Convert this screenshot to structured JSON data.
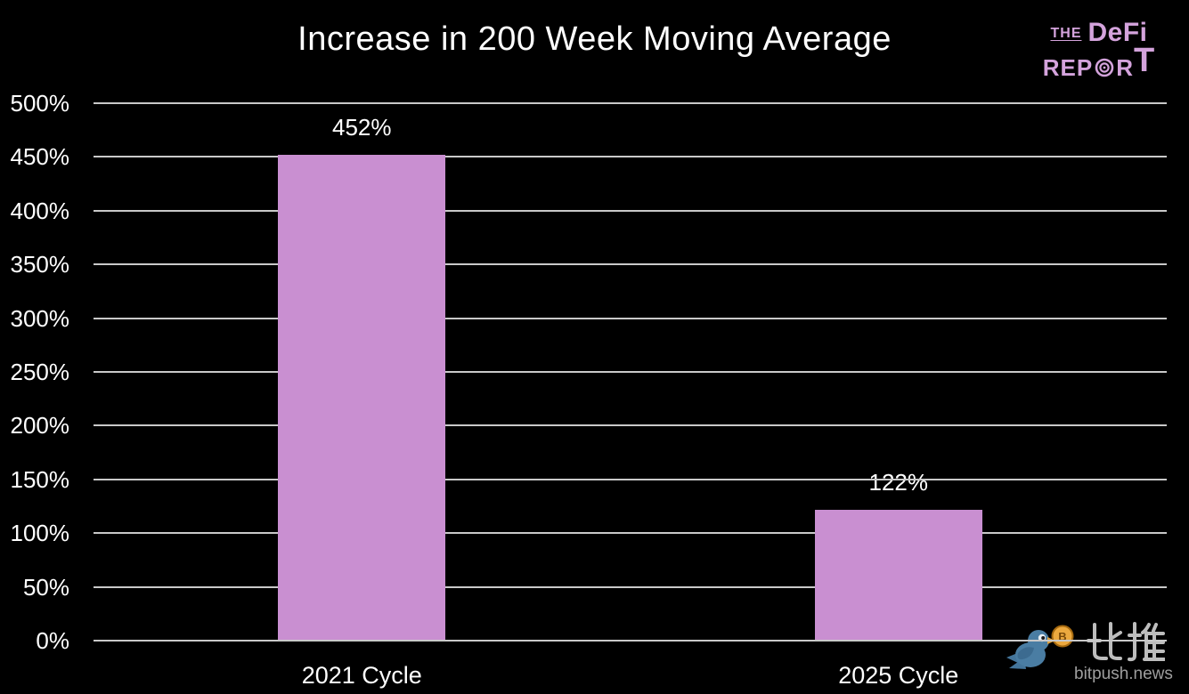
{
  "chart_data": {
    "type": "bar",
    "title": "Increase in 200 Week Moving Average",
    "categories": [
      "2021 Cycle",
      "2025 Cycle"
    ],
    "values": [
      452,
      122
    ],
    "data_labels": [
      "452%",
      "122%"
    ],
    "ylim": [
      0,
      500
    ],
    "ytick_step": 50,
    "ytick_labels": [
      "0%",
      "50%",
      "100%",
      "150%",
      "200%",
      "250%",
      "300%",
      "350%",
      "400%",
      "450%",
      "500%"
    ],
    "xlabel": "",
    "ylabel": "",
    "grid": "horizontal",
    "legend": "none",
    "bar_color": "#c98fd1",
    "gridline_color": "#c9c9c9",
    "background": "#000000",
    "text_color": "#ffffff"
  },
  "defi_logo": {
    "the": "THE",
    "defi": "DeFi",
    "report_pre": "REP",
    "report_r": "R",
    "report_t": "T",
    "color": "#d4a3dc"
  },
  "watermark": {
    "cjk": "比推",
    "domain": "bitpush.news",
    "bird_color": "#4a7da3",
    "coin_color": "#eca93f"
  }
}
